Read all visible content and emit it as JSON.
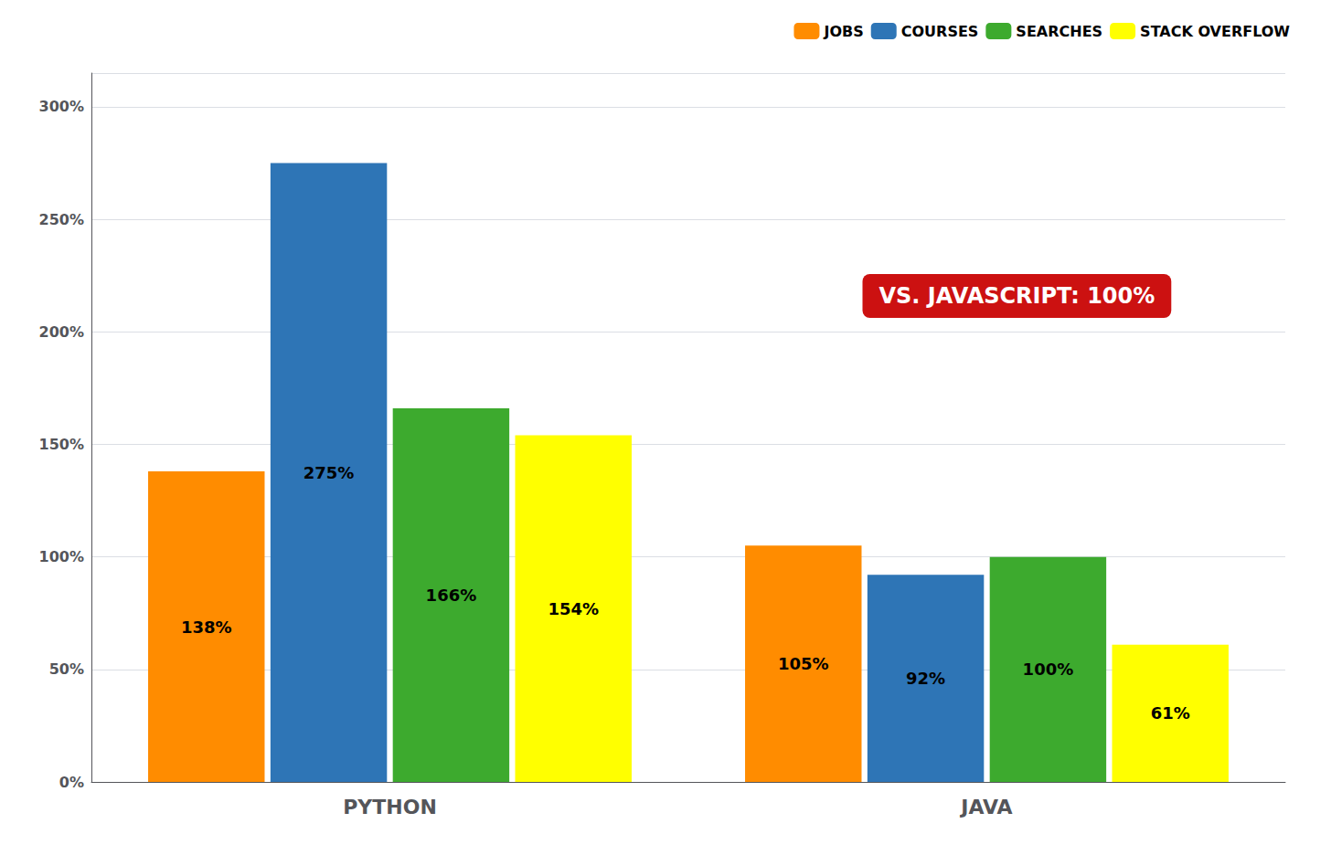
{
  "chart_data": {
    "type": "bar",
    "categories": [
      "PYTHON",
      "JAVA"
    ],
    "series": [
      {
        "name": "JOBS",
        "color": "#FF8C00",
        "values": [
          138,
          105
        ],
        "value_labels": [
          "138%",
          "105%"
        ]
      },
      {
        "name": "COURSES",
        "color": "#2E75B6",
        "values": [
          275,
          92
        ],
        "value_labels": [
          "275%",
          "92%"
        ]
      },
      {
        "name": "SEARCHES",
        "color": "#3DAA2E",
        "values": [
          166,
          100
        ],
        "value_labels": [
          "166%",
          "100%"
        ]
      },
      {
        "name": "STACK OVERFLOW",
        "color": "#FFFF00",
        "values": [
          154,
          61
        ],
        "value_labels": [
          "154%",
          "61%"
        ]
      }
    ],
    "ylim": [
      0,
      315
    ],
    "yticks": [
      {
        "value": 0,
        "label": "0%"
      },
      {
        "value": 50,
        "label": "50%"
      },
      {
        "value": 100,
        "label": "100%"
      },
      {
        "value": 150,
        "label": "150%"
      },
      {
        "value": 200,
        "label": "200%"
      },
      {
        "value": 250,
        "label": "250%"
      },
      {
        "value": 300,
        "label": "300%"
      }
    ],
    "grid": true,
    "legend": "upper right",
    "data_labels": true,
    "annotations": [
      {
        "text": "VS. JAVASCRIPT: 100%",
        "color": "#CC1111"
      }
    ]
  }
}
